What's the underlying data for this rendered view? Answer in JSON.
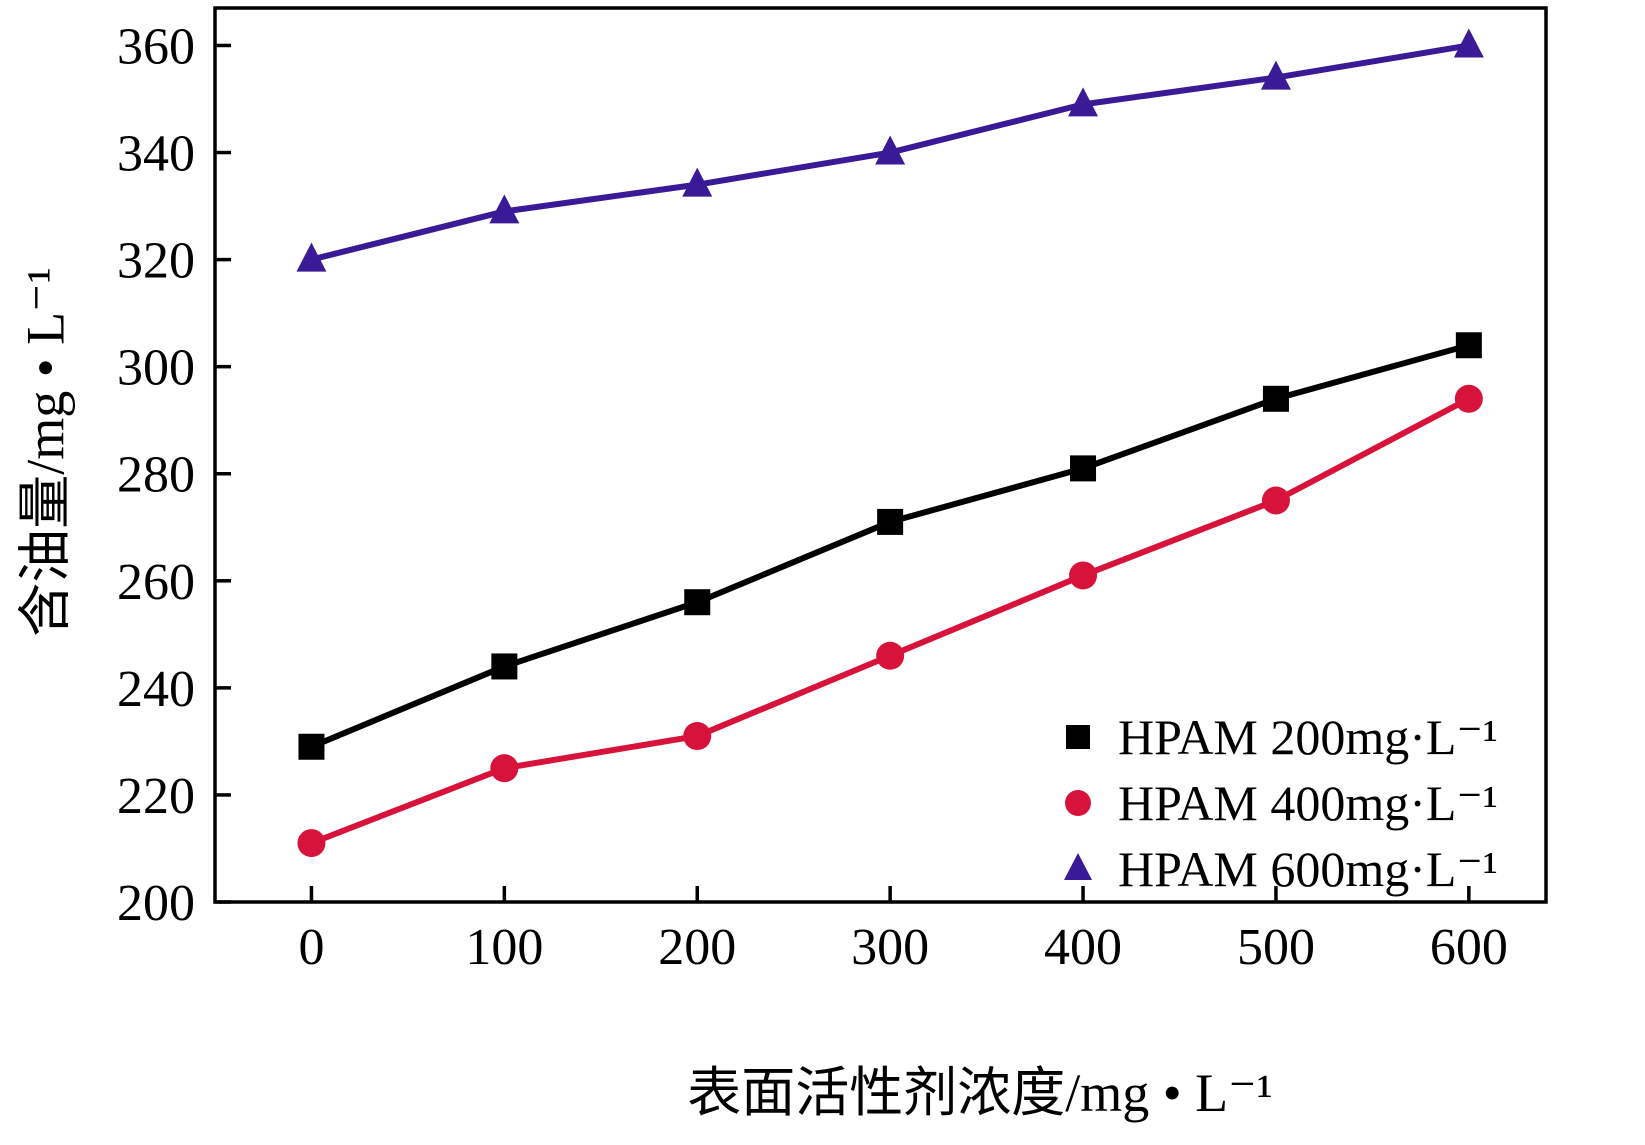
{
  "chart_data": {
    "type": "line",
    "x": [
      0,
      100,
      200,
      300,
      400,
      500,
      600
    ],
    "series": [
      {
        "name": "HPAM 200mg·L⁻¹",
        "marker": "square",
        "color": "#000000",
        "values": [
          229,
          244,
          256,
          271,
          281,
          294,
          304
        ]
      },
      {
        "name": "HPAM 400mg·L⁻¹",
        "marker": "circle",
        "color": "#d8133b",
        "values": [
          211,
          225,
          231,
          246,
          261,
          275,
          294
        ]
      },
      {
        "name": "HPAM 600mg·L⁻¹",
        "marker": "triangle",
        "color": "#3b1a98",
        "values": [
          320,
          329,
          334,
          340,
          349,
          354,
          360
        ]
      }
    ],
    "title": "",
    "xlabel": "表面活性剂浓度/mg • L⁻¹",
    "ylabel": "含油量/mg • L⁻¹",
    "xticks": [
      0,
      100,
      200,
      300,
      400,
      500,
      600
    ],
    "yticks": [
      200,
      220,
      240,
      260,
      280,
      300,
      320,
      340,
      360
    ],
    "xlim": [
      -50,
      640
    ],
    "ylim": [
      200,
      367
    ],
    "grid": false,
    "legend_position": "bottom-right",
    "axis_color": "#000000",
    "background_color": "#ffffff"
  }
}
